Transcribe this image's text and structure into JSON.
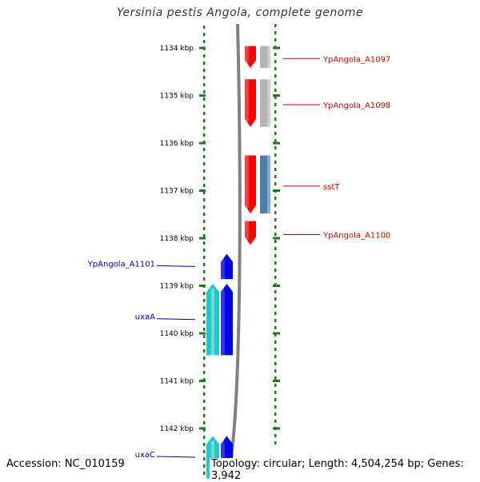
{
  "title": "Yersinia pestis Angola, complete genome",
  "footer": {
    "accession": "Accession: NC_010159",
    "topology": "Topology: circular; Length: 4,504,254 bp; Genes: 3,942"
  },
  "colors": {
    "scale": "#1e7a1e",
    "backbone": "#808080",
    "forward_gene": "#ff0000",
    "forward_partner_grey": "#b4b4b4",
    "forward_partner_steel": "#4a7fb0",
    "reverse_gene": "#0000ee",
    "reverse_partner": "#20c8c8",
    "forward_label": "#cc0000",
    "reverse_label": "#0000aa"
  },
  "ticks": [
    {
      "kbp": 1134,
      "label": "1134 kbp"
    },
    {
      "kbp": 1135,
      "label": "1135 kbp"
    },
    {
      "kbp": 1136,
      "label": "1136 kbp"
    },
    {
      "kbp": 1137,
      "label": "1137 kbp"
    },
    {
      "kbp": 1138,
      "label": "1138 kbp"
    },
    {
      "kbp": 1139,
      "label": "1139 kbp"
    },
    {
      "kbp": 1140,
      "label": "1140 kbp"
    },
    {
      "kbp": 1141,
      "label": "1141 kbp"
    },
    {
      "kbp": 1142,
      "label": "1142 kbp"
    }
  ],
  "view_range_kbp": [
    1133.55,
    1143.05
  ],
  "forward_genes": [
    {
      "label": "YpAngola_A1097",
      "start_kbp": 1133.96,
      "end_kbp": 1134.42,
      "partner": "grey"
    },
    {
      "label": "YpAngola_A1098",
      "start_kbp": 1134.66,
      "end_kbp": 1135.66,
      "partner": "grey"
    },
    {
      "label": "sstT",
      "start_kbp": 1136.26,
      "end_kbp": 1137.48,
      "partner": "steel"
    },
    {
      "label": "YpAngola_A1100",
      "start_kbp": 1137.64,
      "end_kbp": 1138.14,
      "partner": "none"
    }
  ],
  "reverse_genes": [
    {
      "label": "YpAngola_A1101",
      "start_kbp": 1138.33,
      "end_kbp": 1138.86,
      "partner": "none"
    },
    {
      "label": "uxaA",
      "start_kbp": 1138.96,
      "end_kbp": 1140.46,
      "partner": "cyan"
    },
    {
      "label": "uxaC",
      "start_kbp": 1142.16,
      "end_kbp": 1143.05,
      "partner": "cyan"
    }
  ]
}
